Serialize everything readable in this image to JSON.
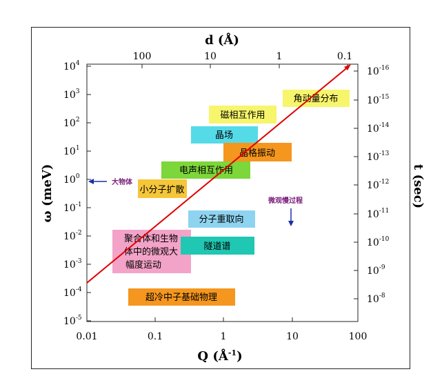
{
  "axes": {
    "top_title": "d (Å)",
    "top_ticks": [
      "100",
      "10",
      "1",
      "0.1"
    ],
    "left_title": "ω (meV)",
    "left_exponents": [
      "4",
      "3",
      "2",
      "1",
      "0",
      "-1",
      "-2",
      "-3",
      "-4",
      "-5"
    ],
    "right_title": "t (sec)",
    "right_exponents": [
      "-16",
      "-15",
      "-14",
      "-13",
      "-12",
      "-11",
      "-10",
      "-9",
      "-8"
    ],
    "bottom_title": "Q (Å",
    "bottom_title_sup": "-1",
    "bottom_title_close": ")",
    "bottom_ticks": [
      "0.01",
      "0.1",
      "1",
      "10",
      "100"
    ],
    "tick_base": "10"
  },
  "regions": [
    {
      "label": "角动量分布",
      "color": "#f7f56b"
    },
    {
      "label": "磁相互作用",
      "color": "#f7f56b"
    },
    {
      "label": "晶场",
      "color": "#55dbe8"
    },
    {
      "label": "晶格振动",
      "color": "#f5961e"
    },
    {
      "label": "电声相互作用",
      "color": "#7dd63a"
    },
    {
      "label": "小分子扩散",
      "color": "#f5c63a"
    },
    {
      "label": "分子重取向",
      "color": "#8ed4f0"
    },
    {
      "label": "聚合体和生物",
      "color": "#f3a3c8"
    },
    {
      "label": "体中的微观大",
      "color": "#f3a3c8"
    },
    {
      "label": "幅度运动",
      "color": "#f3a3c8"
    },
    {
      "label": "隧道谱",
      "color": "#20c7b2"
    },
    {
      "label": "超冷中子基础物理",
      "color": "#f5961e"
    }
  ],
  "annotations": {
    "macro": "大物体",
    "micro": "微观慢过程"
  },
  "colors": {
    "diagonal_line": "#e00000",
    "arrow": "#1a2fa8",
    "annotation": "#7a1f7a"
  }
}
